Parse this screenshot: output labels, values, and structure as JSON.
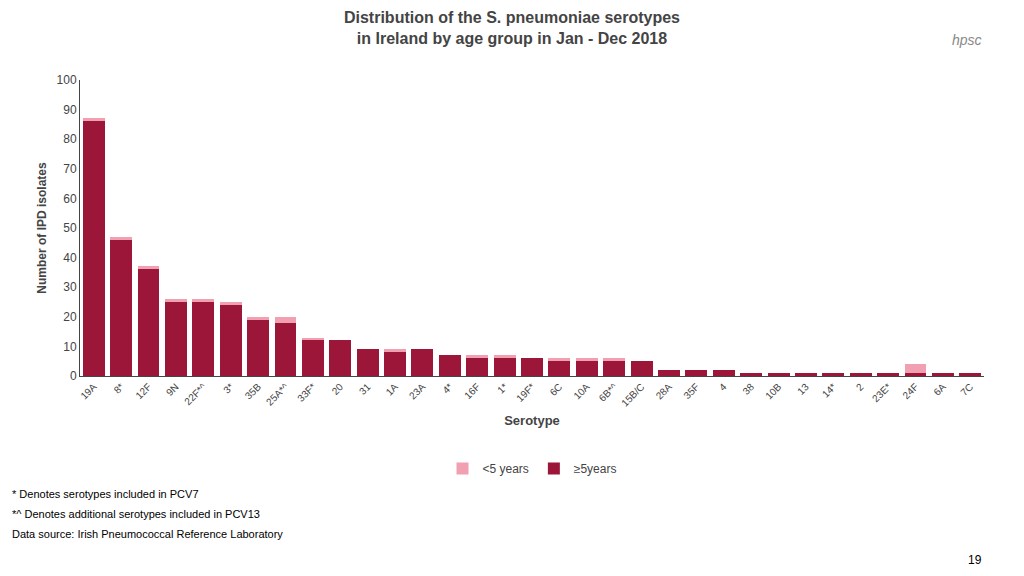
{
  "chart_data": {
    "type": "bar",
    "stacked": true,
    "title": "Distribution of the S. pneumoniae serotypes",
    "subtitle": "in Ireland by age group in Jan - Dec 2018",
    "x_label": "Serotype",
    "y_label": "Number of IPD isolates",
    "categories": [
      "19A",
      "8*",
      "12F",
      "9N",
      "22F*^",
      "3*",
      "35B",
      "25A*^",
      "33F*",
      "20",
      "31",
      "1A",
      "23A",
      "4*",
      "16F",
      "1*",
      "19F*",
      "6C",
      "10A",
      "6B*^",
      "15B/C",
      "28A",
      "35F",
      "4",
      "38",
      "10B",
      "13",
      "14*",
      "2",
      "23E*",
      "24F",
      "6A",
      "7C"
    ],
    "series": [
      {
        "name": "≥5years",
        "color": "#9b1638",
        "values": [
          86,
          46,
          36,
          25,
          25,
          24,
          19,
          18,
          12,
          12,
          9,
          8,
          9,
          7,
          6,
          6,
          6,
          5,
          5,
          5,
          5,
          2,
          2,
          2,
          1,
          1,
          1,
          1,
          1,
          1,
          1,
          1,
          1
        ]
      },
      {
        "name": "<5 years",
        "color": "#f0a0b0",
        "values": [
          1,
          1,
          1,
          1,
          1,
          1,
          1,
          2,
          1,
          0,
          0,
          1,
          0,
          0,
          1,
          1,
          0,
          1,
          1,
          1,
          0,
          0,
          0,
          0,
          0,
          0,
          0,
          0,
          0,
          0,
          3,
          0,
          0
        ]
      }
    ],
    "ylim": [
      0,
      100
    ],
    "yticks": [
      0,
      10,
      20,
      30,
      40,
      50,
      60,
      70,
      80,
      90,
      100
    ],
    "grid": false,
    "annotations": [
      "* Denotes serotypes included in PCV7",
      "*^ Denotes additional serotypes included in PCV13",
      "Data source: Irish Pneumococcal Reference Laboratory",
      "19",
      "hpsc"
    ]
  }
}
